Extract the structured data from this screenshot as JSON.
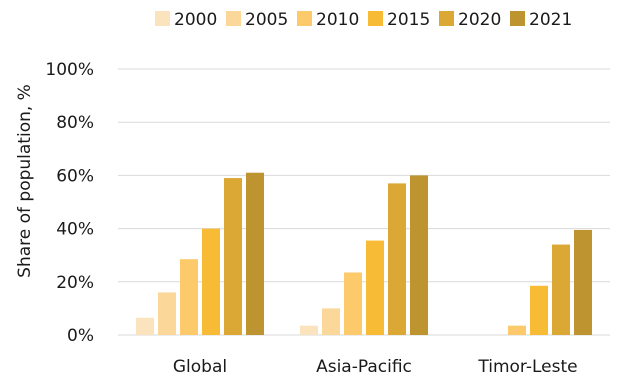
{
  "chart_data": {
    "type": "bar",
    "title": "",
    "xlabel": "",
    "ylabel": "Share of population, %",
    "categories": [
      "Global",
      "Asia-Pacific",
      "Timor-Leste"
    ],
    "ylim": [
      0,
      100
    ],
    "yticks": [
      "0%",
      "20%",
      "40%",
      "60%",
      "80%",
      "100%"
    ],
    "yticks_values": [
      0,
      20,
      40,
      60,
      80,
      100
    ],
    "grid": true,
    "legend_position": "top",
    "series": [
      {
        "name": "2000",
        "color": "#fbe3bd",
        "values": [
          6.5,
          3.5,
          0
        ]
      },
      {
        "name": "2005",
        "color": "#fbd79a",
        "values": [
          16,
          10,
          0
        ]
      },
      {
        "name": "2010",
        "color": "#fcc96b",
        "values": [
          28.5,
          23.5,
          3.5
        ]
      },
      {
        "name": "2015",
        "color": "#f7bb35",
        "values": [
          40,
          35.5,
          18.5
        ]
      },
      {
        "name": "2020",
        "color": "#dca835",
        "values": [
          59,
          57,
          34
        ]
      },
      {
        "name": "2021",
        "color": "#be9430",
        "values": [
          61,
          60,
          39.5
        ]
      }
    ]
  }
}
